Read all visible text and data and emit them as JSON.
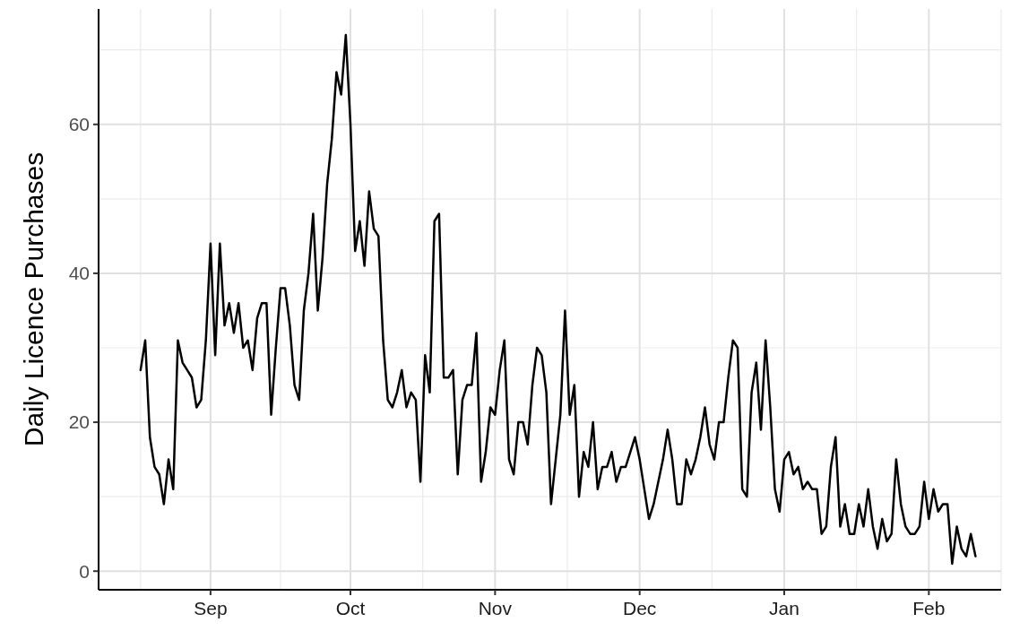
{
  "chart_data": {
    "type": "line",
    "ylabel": "Daily Licence Purchases",
    "grid": true,
    "marker": "none",
    "line_style": "solid",
    "categories": [
      null,
      null,
      null,
      null,
      null,
      null,
      null,
      null,
      null,
      null,
      null,
      null,
      null,
      null,
      null,
      "Sep",
      null,
      null,
      null,
      null,
      null,
      null,
      null,
      null,
      null,
      null,
      null,
      null,
      null,
      null,
      null,
      null,
      null,
      null,
      null,
      null,
      null,
      null,
      null,
      null,
      null,
      null,
      null,
      null,
      null,
      "Oct",
      null,
      null,
      null,
      null,
      null,
      null,
      null,
      null,
      null,
      null,
      null,
      null,
      null,
      null,
      null,
      null,
      null,
      null,
      null,
      null,
      null,
      null,
      null,
      null,
      null,
      null,
      null,
      null,
      null,
      null,
      "Nov",
      null,
      null,
      null,
      null,
      null,
      null,
      null,
      null,
      null,
      null,
      null,
      null,
      null,
      null,
      null,
      null,
      null,
      null,
      null,
      null,
      null,
      null,
      null,
      null,
      null,
      null,
      null,
      null,
      null,
      null,
      "Dec",
      null,
      null,
      null,
      null,
      null,
      null,
      null,
      null,
      null,
      null,
      null,
      null,
      null,
      null,
      null,
      null,
      null,
      null,
      null,
      null,
      null,
      null,
      null,
      null,
      null,
      null,
      null,
      null,
      null,
      null,
      "Jan",
      null,
      null,
      null,
      null,
      null,
      null,
      null,
      null,
      null,
      null,
      null,
      null,
      null,
      null,
      null,
      null,
      null,
      null,
      null,
      null,
      null,
      null,
      null,
      null,
      null,
      null,
      null,
      null,
      null,
      null,
      "Feb",
      null,
      null,
      null,
      null,
      null,
      null,
      null,
      null,
      null,
      null
    ],
    "ylim": [
      -2.5,
      75.5
    ],
    "yticks": [
      0,
      20,
      40,
      60
    ],
    "series": [
      {
        "color": "#000000",
        "values": [
          27,
          31,
          18,
          14,
          13,
          9,
          15,
          11,
          31,
          28,
          27,
          26,
          22,
          23,
          31,
          44,
          29,
          44,
          33,
          36,
          32,
          36,
          30,
          31,
          27,
          34,
          36,
          36,
          21,
          30,
          38,
          38,
          33,
          25,
          23,
          35,
          40,
          48,
          35,
          42,
          52,
          58,
          67,
          64,
          72,
          60,
          43,
          47,
          41,
          51,
          46,
          45,
          31,
          23,
          22,
          24,
          27,
          22,
          24,
          23,
          12,
          29,
          24,
          47,
          48,
          26,
          26,
          27,
          13,
          23,
          25,
          25,
          32,
          12,
          16,
          22,
          21,
          27,
          31,
          15,
          13,
          20,
          20,
          17,
          25,
          30,
          29,
          24,
          9,
          15,
          21,
          35,
          21,
          25,
          10,
          16,
          14,
          20,
          11,
          14,
          14,
          16,
          12,
          14,
          14,
          16,
          18,
          15,
          11,
          7,
          9,
          12,
          15,
          19,
          15,
          9,
          9,
          15,
          13,
          15,
          18,
          22,
          17,
          15,
          20,
          20,
          26,
          31,
          30,
          11,
          10,
          24,
          28,
          19,
          31,
          22,
          11,
          8,
          15,
          16,
          13,
          14,
          11,
          12,
          11,
          11,
          5,
          6,
          14,
          18,
          6,
          9,
          5,
          5,
          9,
          6,
          11,
          6,
          3,
          7,
          4,
          5,
          15,
          9,
          6,
          5,
          5,
          6,
          12,
          7,
          11,
          8,
          9,
          9,
          1,
          6,
          3,
          2,
          5,
          2
        ]
      }
    ]
  }
}
